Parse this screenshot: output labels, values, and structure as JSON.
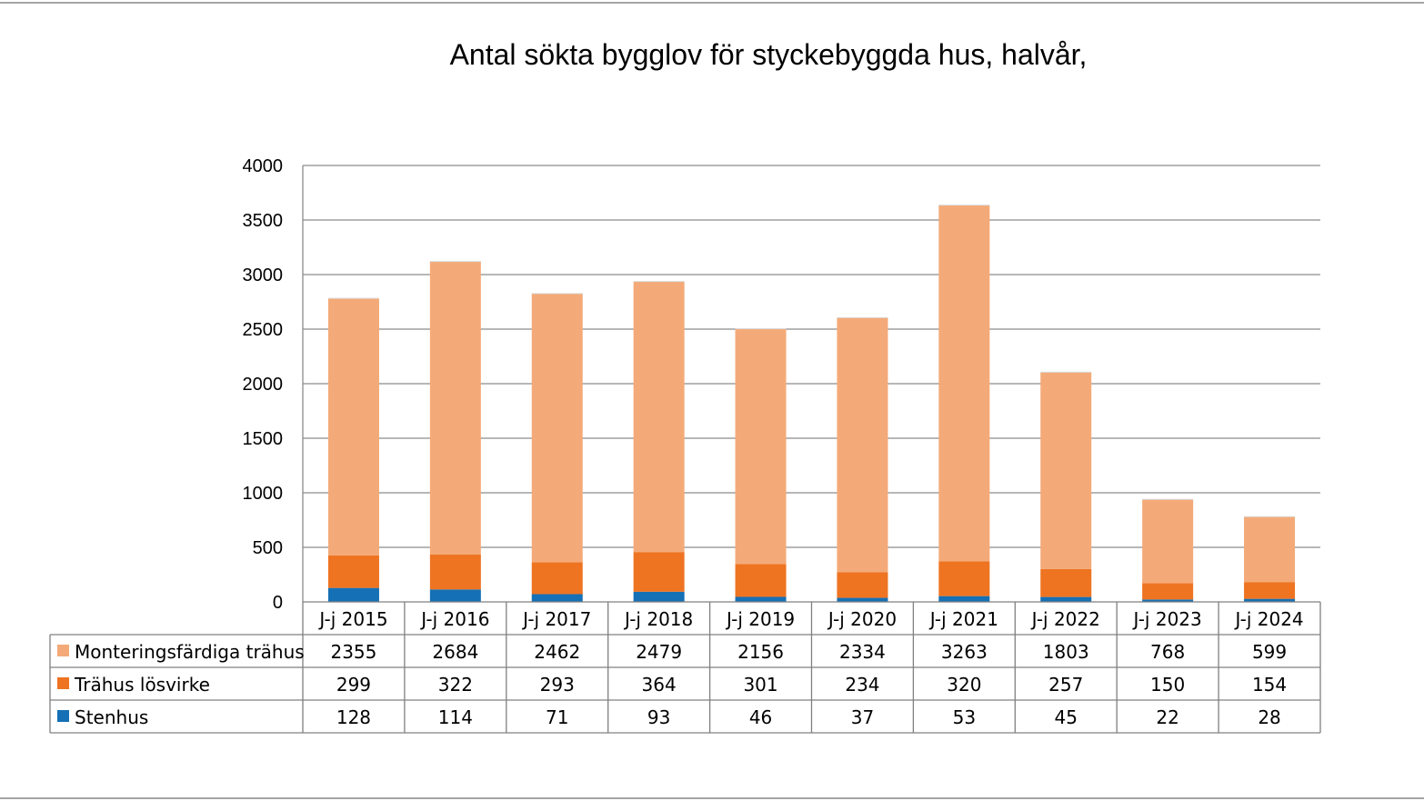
{
  "chart_data": {
    "type": "bar",
    "stacked": true,
    "title": "Antal sökta bygglov för styckebyggda hus, halvår,",
    "categories": [
      "J-j 2015",
      "J-j 2016",
      "J-j 2017",
      "J-j 2018",
      "J-j 2019",
      "J-j 2020",
      "J-j 2021",
      "J-j 2022",
      "J-j 2023",
      "J-j 2024"
    ],
    "series": [
      {
        "name": "Monteringsfärdiga trähus",
        "color": "#f4aa78",
        "values": [
          2355,
          2684,
          2462,
          2479,
          2156,
          2334,
          3263,
          1803,
          768,
          599
        ]
      },
      {
        "name": "Trähus lösvirke",
        "color": "#ee7422",
        "values": [
          299,
          322,
          293,
          364,
          301,
          234,
          320,
          257,
          150,
          154
        ]
      },
      {
        "name": "Stenhus",
        "color": "#1570b5",
        "values": [
          128,
          114,
          71,
          93,
          46,
          37,
          53,
          45,
          22,
          28
        ]
      }
    ],
    "stack_order_bottom_to_top": [
      "Stenhus",
      "Trähus lösvirke",
      "Monteringsfärdiga trähus"
    ],
    "y_ticks": [
      0,
      500,
      1000,
      1500,
      2000,
      2500,
      3000,
      3500,
      4000
    ],
    "ylim": [
      0,
      4000
    ],
    "grid": true,
    "legend": "data-table-below"
  }
}
